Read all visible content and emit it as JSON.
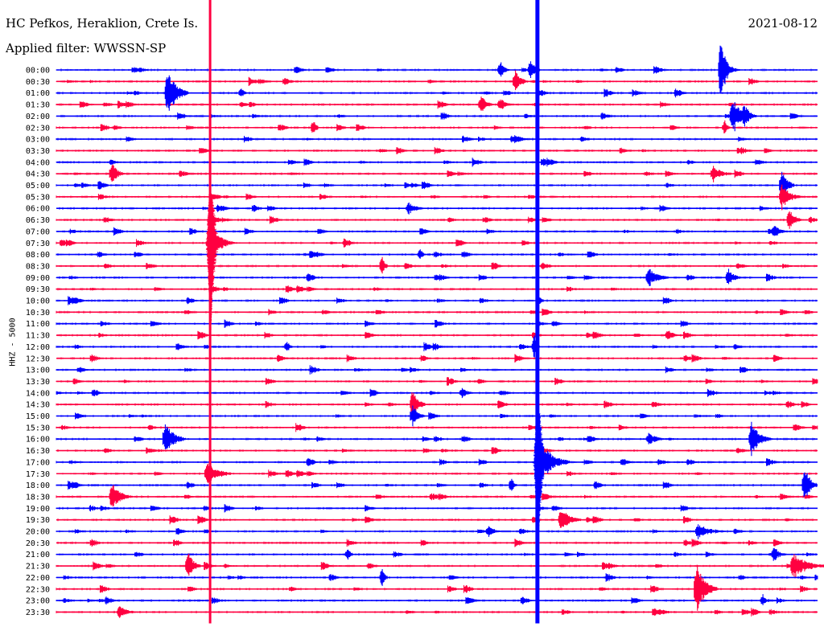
{
  "header": {
    "station": "HC Pefkos, Heraklion, Crete Is.",
    "date": "2021-08-12",
    "filter": "Applied filter: WWSSN-SP"
  },
  "axis": {
    "ylabel": "HHZ - 5000"
  },
  "colors": {
    "blue": "#0000ff",
    "red": "#ff0040"
  },
  "chart_data": {
    "type": "line",
    "title": "HC Pefkos, Heraklion, Crete Is.",
    "subtitle": "Applied filter: WWSSN-SP",
    "ylabel": "HHZ - 5000",
    "grid": false,
    "tick_labels": [
      "00:00",
      "00:30",
      "01:00",
      "01:30",
      "02:00",
      "02:30",
      "03:00",
      "03:30",
      "04:00",
      "04:30",
      "05:00",
      "05:30",
      "06:00",
      "06:30",
      "07:00",
      "07:30",
      "08:00",
      "08:30",
      "09:00",
      "09:30",
      "10:00",
      "10:30",
      "11:00",
      "11:30",
      "12:00",
      "12:30",
      "13:00",
      "13:30",
      "14:00",
      "14:30",
      "15:00",
      "15:30",
      "16:00",
      "16:30",
      "17:00",
      "17:30",
      "18:00",
      "18:30",
      "19:00",
      "19:30",
      "20:00",
      "20:30",
      "21:00",
      "21:30",
      "22:00",
      "22:30",
      "23:00",
      "23:30"
    ],
    "series_colors": [
      "blue",
      "red"
    ],
    "events": [
      {
        "row": 0,
        "x": 0.87,
        "amp": 38,
        "len": 0.02
      },
      {
        "row": 0,
        "x": 0.58,
        "amp": 12,
        "len": 0.015
      },
      {
        "row": 0,
        "x": 0.62,
        "amp": 14,
        "len": 0.015
      },
      {
        "row": 1,
        "x": 0.6,
        "amp": 14,
        "len": 0.02
      },
      {
        "row": 2,
        "x": 0.143,
        "amp": 30,
        "len": 0.03
      },
      {
        "row": 2,
        "x": 0.24,
        "amp": 8,
        "len": 0.01
      },
      {
        "row": 3,
        "x": 0.555,
        "amp": 12,
        "len": 0.02
      },
      {
        "row": 3,
        "x": 0.58,
        "amp": 9,
        "len": 0.02
      },
      {
        "row": 4,
        "x": 0.885,
        "amp": 24,
        "len": 0.03
      },
      {
        "row": 4,
        "x": 0.9,
        "amp": 18,
        "len": 0.02
      },
      {
        "row": 5,
        "x": 0.335,
        "amp": 10,
        "len": 0.01
      },
      {
        "row": 5,
        "x": 0.875,
        "amp": 10,
        "len": 0.01
      },
      {
        "row": 9,
        "x": 0.07,
        "amp": 14,
        "len": 0.02
      },
      {
        "row": 9,
        "x": 0.86,
        "amp": 10,
        "len": 0.03
      },
      {
        "row": 10,
        "x": 0.95,
        "amp": 20,
        "len": 0.02
      },
      {
        "row": 11,
        "x": 0.95,
        "amp": 16,
        "len": 0.03
      },
      {
        "row": 12,
        "x": 0.46,
        "amp": 8,
        "len": 0.02
      },
      {
        "row": 13,
        "x": 0.96,
        "amp": 14,
        "len": 0.02
      },
      {
        "row": 14,
        "x": 0.94,
        "amp": 10,
        "len": 0.02
      },
      {
        "row": 15,
        "x": 0.205,
        "amp": 18,
        "len": 0.03
      },
      {
        "row": 16,
        "x": 0.475,
        "amp": 8,
        "len": 0.01
      },
      {
        "row": 17,
        "x": 0.425,
        "amp": 14,
        "len": 0.01
      },
      {
        "row": 18,
        "x": 0.775,
        "amp": 13,
        "len": 0.03
      },
      {
        "row": 18,
        "x": 0.88,
        "amp": 12,
        "len": 0.02
      },
      {
        "row": 20,
        "x": 0.63,
        "amp": 10,
        "len": 0.01
      },
      {
        "row": 23,
        "x": 0.8,
        "amp": 8,
        "len": 0.02
      },
      {
        "row": 24,
        "x": 0.3,
        "amp": 8,
        "len": 0.01
      },
      {
        "row": 24,
        "x": 0.625,
        "amp": 16,
        "len": 0.01
      },
      {
        "row": 28,
        "x": 0.53,
        "amp": 7,
        "len": 0.02
      },
      {
        "row": 29,
        "x": 0.465,
        "amp": 20,
        "len": 0.02
      },
      {
        "row": 30,
        "x": 0.465,
        "amp": 14,
        "len": 0.02
      },
      {
        "row": 32,
        "x": 0.14,
        "amp": 22,
        "len": 0.03
      },
      {
        "row": 32,
        "x": 0.775,
        "amp": 8,
        "len": 0.03
      },
      {
        "row": 32,
        "x": 0.91,
        "amp": 22,
        "len": 0.03
      },
      {
        "row": 34,
        "x": 0.635,
        "amp": 26,
        "len": 0.04
      },
      {
        "row": 35,
        "x": 0.195,
        "amp": 14,
        "len": 0.04
      },
      {
        "row": 36,
        "x": 0.595,
        "amp": 10,
        "len": 0.01
      },
      {
        "row": 36,
        "x": 0.98,
        "amp": 24,
        "len": 0.02
      },
      {
        "row": 37,
        "x": 0.07,
        "amp": 18,
        "len": 0.03
      },
      {
        "row": 39,
        "x": 0.66,
        "amp": 16,
        "len": 0.03
      },
      {
        "row": 40,
        "x": 0.565,
        "amp": 8,
        "len": 0.02
      },
      {
        "row": 40,
        "x": 0.84,
        "amp": 10,
        "len": 0.04
      },
      {
        "row": 42,
        "x": 0.38,
        "amp": 10,
        "len": 0.01
      },
      {
        "row": 42,
        "x": 0.94,
        "amp": 10,
        "len": 0.02
      },
      {
        "row": 43,
        "x": 0.17,
        "amp": 18,
        "len": 0.02
      },
      {
        "row": 43,
        "x": 0.965,
        "amp": 16,
        "len": 0.05
      },
      {
        "row": 44,
        "x": 0.425,
        "amp": 12,
        "len": 0.01
      },
      {
        "row": 45,
        "x": 0.838,
        "amp": 34,
        "len": 0.03
      },
      {
        "row": 46,
        "x": 0.925,
        "amp": 8,
        "len": 0.01
      },
      {
        "row": 47,
        "x": 0.08,
        "amp": 8,
        "len": 0.03
      }
    ],
    "long_signals": [
      {
        "x": 0.202,
        "color": "red",
        "from_row": 0,
        "to_row": 48,
        "peak_row": 15
      },
      {
        "x": 0.632,
        "color": "blue",
        "from_row": 0,
        "to_row": 48,
        "peak_row": 34
      }
    ]
  }
}
